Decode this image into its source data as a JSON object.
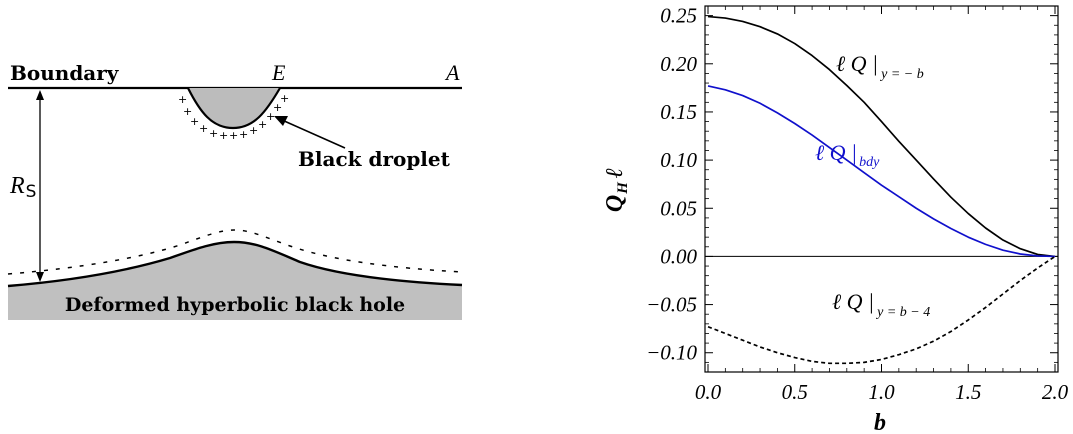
{
  "diagram": {
    "boundary_label": "Boundary",
    "point_e": "E",
    "point_a": "A",
    "droplet_label": "Black droplet",
    "radius_label": "R",
    "radius_sub": "S",
    "horizon_label": "Deformed hyperbolic black hole",
    "horizon_fill": "#c0c0c0",
    "droplet_fill": "#bcbcbc"
  },
  "chart_data": {
    "type": "line",
    "title": "",
    "xlabel": "b",
    "ylabel": "Q",
    "ylabel_sub": "H",
    "ylabel_suffix": "ℓ",
    "xlim": [
      0,
      2
    ],
    "ylim": [
      -0.12,
      0.26
    ],
    "xticks": [
      "0.0",
      "0.5",
      "1.0",
      "1.5",
      "2.0"
    ],
    "yticks": [
      "0.25",
      "0.20",
      "0.15",
      "0.10",
      "0.05",
      "0.00",
      "−0.05",
      "−0.10"
    ],
    "ytick_values": [
      0.25,
      0.2,
      0.15,
      0.1,
      0.05,
      0.0,
      -0.05,
      -0.1
    ],
    "xtick_values": [
      0,
      0.5,
      1.0,
      1.5,
      2.0
    ],
    "series": [
      {
        "style": "solid",
        "color": "#000000",
        "label_main": "ℓ Q |",
        "label_sub": "y = − b",
        "x": [
          0,
          0.1,
          0.2,
          0.3,
          0.4,
          0.5,
          0.6,
          0.7,
          0.8,
          0.9,
          1.0,
          1.1,
          1.2,
          1.3,
          1.4,
          1.5,
          1.6,
          1.7,
          1.8,
          1.9,
          2.0
        ],
        "y": [
          0.249,
          0.2475,
          0.244,
          0.2385,
          0.231,
          0.221,
          0.2085,
          0.194,
          0.1775,
          0.16,
          0.14,
          0.1195,
          0.1,
          0.0805,
          0.0615,
          0.0445,
          0.0295,
          0.017,
          0.008,
          0.002,
          0.0
        ]
      },
      {
        "style": "solid",
        "color": "#1010cc",
        "label_main": "ℓ Q |",
        "label_sub": "bdy",
        "x": [
          0,
          0.1,
          0.2,
          0.3,
          0.4,
          0.5,
          0.6,
          0.7,
          0.8,
          0.9,
          1.0,
          1.1,
          1.2,
          1.3,
          1.4,
          1.5,
          1.6,
          1.7,
          1.8,
          1.9,
          2.0
        ],
        "y": [
          0.177,
          0.173,
          0.167,
          0.159,
          0.149,
          0.138,
          0.126,
          0.113,
          0.1,
          0.087,
          0.074,
          0.062,
          0.05,
          0.039,
          0.029,
          0.02,
          0.0125,
          0.0065,
          0.0025,
          0.0005,
          0.0
        ]
      },
      {
        "style": "dashed",
        "color": "#000000",
        "label_main": "ℓ Q |",
        "label_sub": "y = b − 4",
        "x": [
          0,
          0.1,
          0.2,
          0.3,
          0.4,
          0.5,
          0.6,
          0.7,
          0.8,
          0.9,
          1.0,
          1.1,
          1.2,
          1.3,
          1.4,
          1.5,
          1.6,
          1.7,
          1.8,
          1.9,
          2.0
        ],
        "y": [
          -0.073,
          -0.08,
          -0.087,
          -0.094,
          -0.1,
          -0.105,
          -0.109,
          -0.111,
          -0.111,
          -0.11,
          -0.107,
          -0.102,
          -0.096,
          -0.088,
          -0.078,
          -0.066,
          -0.053,
          -0.039,
          -0.025,
          -0.012,
          0.0
        ]
      }
    ],
    "legend": "inline-annotations"
  }
}
